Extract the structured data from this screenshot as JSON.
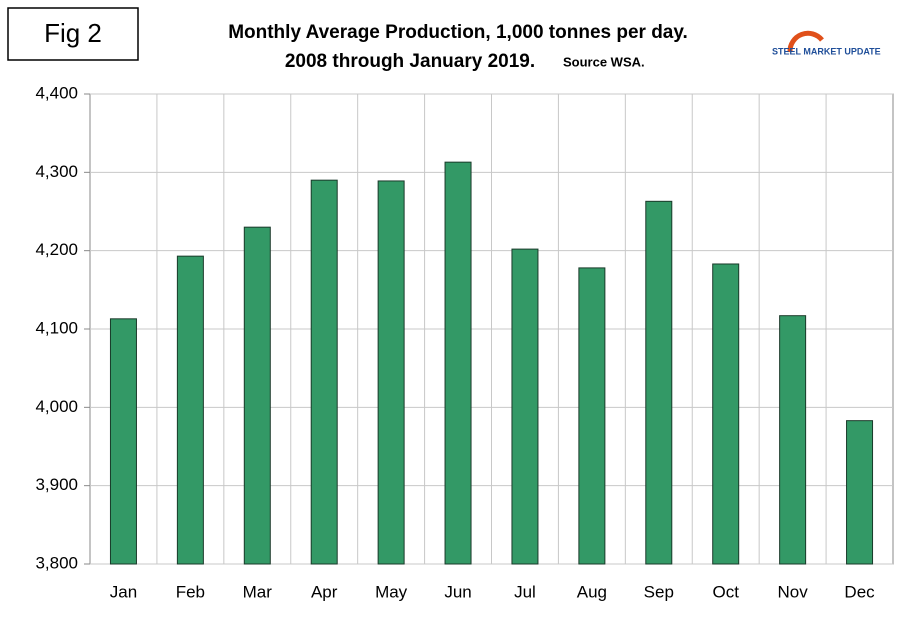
{
  "fig_label": "Fig 2",
  "logo": "STEEL MARKET UPDATE",
  "chart_data": {
    "type": "bar",
    "title": "Monthly Average Production, 1,000 tonnes per day.",
    "subtitle": "2008 through January 2019.",
    "source": "Source WSA.",
    "categories": [
      "Jan",
      "Feb",
      "Mar",
      "Apr",
      "May",
      "Jun",
      "Jul",
      "Aug",
      "Sep",
      "Oct",
      "Nov",
      "Dec"
    ],
    "values": [
      4113,
      4193,
      4230,
      4290,
      4289,
      4313,
      4202,
      4178,
      4263,
      4183,
      4117,
      3983
    ],
    "color": "#339966",
    "ylim": [
      3800,
      4400
    ],
    "yticks": [
      {
        "value": 3800,
        "label": "3,800"
      },
      {
        "value": 3900,
        "label": "3,900"
      },
      {
        "value": 4000,
        "label": "4,000"
      },
      {
        "value": 4100,
        "label": "4,100"
      },
      {
        "value": 4200,
        "label": "4,200"
      },
      {
        "value": 4300,
        "label": "4,300"
      },
      {
        "value": 4400,
        "label": "4,400"
      }
    ],
    "grid": true
  }
}
